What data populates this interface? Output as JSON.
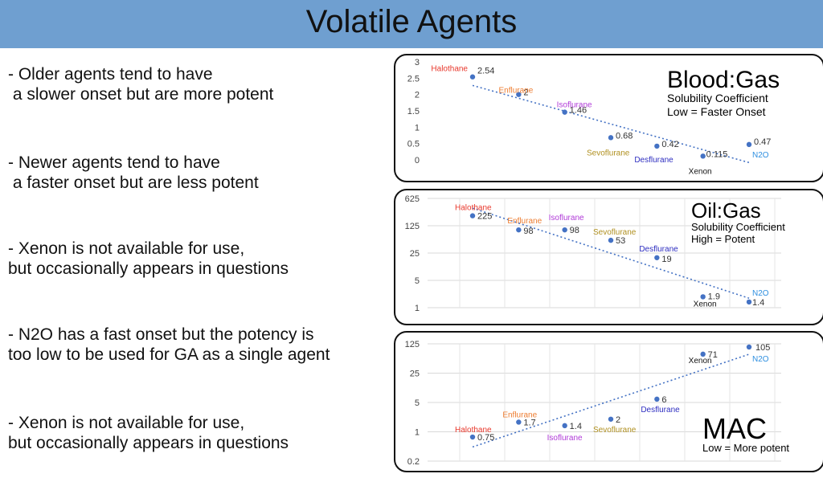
{
  "slide": {
    "title": "Volatile Agents"
  },
  "bullets": [
    "- Older agents tend to have\n a slower onset but are more potent",
    "- Newer agents tend to have\n a faster onset but are less potent",
    "- Xenon is not available for use,\nbut occasionally appears in questions",
    "- N2O has a fast onset but the potency is\ntoo low to be used for GA as a single agent",
    "- Xenon is not available for use,\nbut occasionally appears in questions"
  ],
  "colors": {
    "header": "#6f9fd0",
    "points": "#4472c4",
    "trendline": "#4472c4",
    "halothane": "#e8372b",
    "enflurane": "#ed7d31",
    "isoflurane": "#b03ad8",
    "sevoflurane": "#b09020",
    "desflurane": "#2e2ec0",
    "xenon": "#111111",
    "n2o": "#2e8fe0"
  },
  "chart_data": [
    {
      "type": "scatter",
      "title": "Blood:Gas",
      "subtitle_lines": [
        "Solubility Coefficient",
        "Low = Faster Onset"
      ],
      "x": [
        1,
        2,
        3,
        4,
        5,
        6,
        7
      ],
      "values": [
        2.54,
        2,
        1.46,
        0.68,
        0.42,
        0.115,
        0.47
      ],
      "value_labels": [
        "2.54",
        "2",
        "1.46",
        "0.68",
        "0.42",
        "0.115",
        "0.47"
      ],
      "agents": [
        "Halothane",
        "Enflurane",
        "Isoflurane",
        "Sevoflurane",
        "Desflurane",
        "Xenon",
        "N2O"
      ],
      "yscale": "linear",
      "ylim": [
        0,
        3
      ],
      "yticks": [
        "0",
        "0.5",
        "1",
        "1.5",
        "2",
        "2.5",
        "3"
      ],
      "trendline": "linear (dotted)",
      "grid": false
    },
    {
      "type": "scatter",
      "title": "Oil:Gas",
      "subtitle_lines": [
        "Solubility Coefficient",
        "High = Potent"
      ],
      "x": [
        1,
        2,
        3,
        4,
        5,
        6,
        7
      ],
      "values": [
        225,
        98,
        98,
        53,
        19,
        1.9,
        1.4
      ],
      "value_labels": [
        "225",
        "98",
        "98",
        "53",
        "19",
        "1.9",
        "1.4"
      ],
      "agents": [
        "Halothane",
        "Enflurane",
        "Isoflurane",
        "Sevoflurane",
        "Desflurane",
        "Xenon",
        "N2O"
      ],
      "yscale": "log",
      "ylim": [
        1,
        625
      ],
      "yticks": [
        "1",
        "5",
        "25",
        "125",
        "625"
      ],
      "trendline": "exponential (dotted)",
      "grid": true
    },
    {
      "type": "scatter",
      "title": "MAC",
      "subtitle_lines": [
        "Low = More potent"
      ],
      "x": [
        1,
        2,
        3,
        4,
        5,
        6,
        7
      ],
      "values": [
        0.75,
        1.7,
        1.4,
        2,
        6,
        71,
        105
      ],
      "value_labels": [
        "0.75",
        "1.7",
        "1.4",
        "2",
        "6",
        "71",
        "105"
      ],
      "agents": [
        "Halothane",
        "Enflurane",
        "Isoflurane",
        "Sevoflurane",
        "Desflurane",
        "Xenon",
        "N2O"
      ],
      "yscale": "log",
      "ylim": [
        0.2,
        125
      ],
      "yticks": [
        "0.2",
        "1",
        "5",
        "25",
        "125"
      ],
      "trendline": "exponential (dotted)",
      "grid": true
    }
  ]
}
